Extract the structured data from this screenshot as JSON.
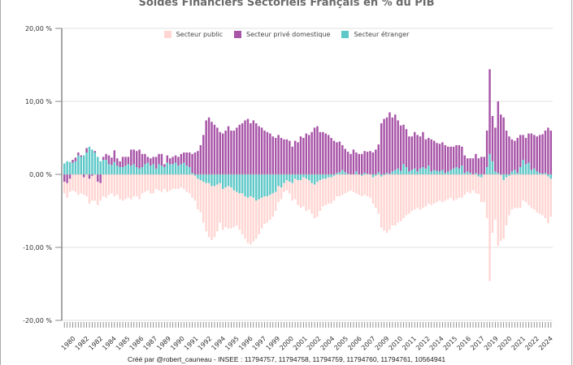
{
  "chart_data": {
    "type": "bar",
    "stacked": true,
    "title": "Soldes Financiers Sectoriels Français en % du PIB",
    "xlabel": "",
    "ylabel": "",
    "ylim": [
      -20,
      20
    ],
    "y_ticks": [
      20,
      10,
      0,
      -10,
      -20
    ],
    "y_tick_labels": [
      "20,00 %",
      "10,00 %",
      "0,00 %",
      "-10,00 %",
      "-20,00 %"
    ],
    "x_tick_labels": [
      "1980",
      "1982",
      "1982",
      "1984",
      "1985",
      "1986",
      "1987",
      "1989",
      "1990",
      "1991",
      "1992",
      "1994",
      "1995",
      "1996",
      "1997",
      "1999",
      "2000",
      "2001",
      "2002",
      "2004",
      "2005",
      "2006",
      "2007",
      "2009",
      "2010",
      "2011",
      "2012",
      "2014",
      "2015",
      "2016",
      "2017",
      "2019",
      "2020",
      "2021",
      "2022",
      "2024"
    ],
    "frequency": "quarterly",
    "start": "1980Q1",
    "end": "2024Q4",
    "grid": true,
    "legend_position": "top",
    "series": [
      {
        "name": "Secteur étranger",
        "color": "#5ec8c8",
        "values": [
          1.5,
          1.8,
          1.7,
          1.6,
          1.8,
          2.6,
          2.4,
          2.6,
          3.0,
          3.8,
          3.4,
          3.0,
          2.4,
          1.8,
          2.0,
          2.0,
          1.4,
          1.3,
          1.7,
          1.2,
          1.0,
          1.0,
          1.2,
          1.4,
          1.2,
          1.4,
          1.0,
          0.8,
          1.0,
          1.4,
          1.6,
          1.2,
          1.4,
          0.8,
          1.4,
          1.2,
          1.0,
          1.6,
          1.4,
          1.4,
          1.6,
          1.2,
          1.4,
          1.6,
          1.2,
          1.0,
          0.2,
          -0.2,
          -0.6,
          -0.8,
          -1.0,
          -1.2,
          -1.2,
          -1.6,
          -1.6,
          -1.4,
          -1.2,
          -2.0,
          -1.8,
          -1.6,
          -1.8,
          -2.2,
          -2.4,
          -2.6,
          -2.6,
          -3.0,
          -3.2,
          -3.0,
          -3.2,
          -3.6,
          -3.4,
          -3.2,
          -3.0,
          -3.0,
          -2.8,
          -2.6,
          -2.4,
          -1.6,
          -1.8,
          -1.2,
          -0.8,
          -1.0,
          -1.2,
          -0.6,
          -0.8,
          -0.8,
          -0.4,
          -0.6,
          -0.8,
          -1.2,
          -1.4,
          -1.0,
          -0.8,
          -0.6,
          -0.6,
          -0.4,
          -0.4,
          -0.2,
          0.2,
          0.3,
          0.6,
          0.3,
          0.1,
          0.0,
          0.0,
          0.4,
          0.0,
          -0.2,
          0.2,
          0.1,
          0.0,
          -0.4,
          -0.2,
          0.3,
          -0.3,
          -0.1,
          0.2,
          0.1,
          0.4,
          0.6,
          0.8,
          0.5,
          1.4,
          1.0,
          0.4,
          0.6,
          0.8,
          0.4,
          0.8,
          1.0,
          0.8,
          1.2,
          0.4,
          0.6,
          0.5,
          0.4,
          0.6,
          0.2,
          0.4,
          0.6,
          0.8,
          1.0,
          0.8,
          1.2,
          0.2,
          0.4,
          0.2,
          0.0,
          0.2,
          -0.3,
          -0.4,
          0.0,
          1.0,
          2.8,
          1.8,
          0.4,
          0.2,
          -0.1,
          -0.8,
          -0.4,
          -0.2,
          0.4,
          0.6,
          0.2,
          1.0,
          2.0,
          1.4,
          1.6,
          0.6,
          0.8,
          0.4,
          0.2,
          0.1,
          0.2,
          -0.3,
          -0.6
        ]
      },
      {
        "name": "Secteur privé domestique",
        "color": "#a855a8",
        "values": [
          -1.0,
          -1.2,
          -0.6,
          0.4,
          0.5,
          0.4,
          0.2,
          -0.4,
          0.6,
          -0.6,
          -0.2,
          0.2,
          -1.0,
          -1.2,
          0.4,
          0.8,
          1.2,
          1.0,
          1.6,
          1.0,
          0.8,
          1.4,
          1.2,
          1.0,
          2.2,
          2.0,
          2.2,
          2.6,
          1.8,
          1.4,
          0.8,
          1.0,
          1.0,
          1.6,
          1.4,
          1.6,
          0.4,
          1.0,
          0.8,
          1.0,
          1.0,
          1.2,
          1.4,
          1.4,
          1.8,
          2.0,
          2.6,
          3.0,
          3.2,
          4.0,
          5.4,
          7.4,
          7.8,
          7.2,
          6.8,
          6.4,
          5.8,
          5.6,
          6.0,
          6.6,
          6.0,
          6.0,
          6.4,
          6.8,
          7.0,
          7.4,
          7.6,
          7.0,
          7.4,
          7.0,
          6.6,
          6.4,
          6.0,
          5.8,
          5.6,
          5.2,
          5.0,
          5.4,
          5.0,
          4.8,
          4.8,
          4.6,
          3.8,
          4.6,
          4.4,
          5.2,
          5.0,
          5.6,
          5.4,
          5.8,
          6.4,
          6.6,
          5.8,
          5.8,
          5.6,
          5.4,
          5.0,
          4.6,
          4.2,
          4.2,
          3.4,
          3.2,
          3.0,
          2.8,
          3.4,
          2.6,
          2.8,
          2.8,
          3.0,
          3.0,
          3.2,
          3.0,
          3.4,
          3.8,
          7.0,
          7.6,
          7.6,
          8.4,
          7.4,
          7.6,
          6.6,
          6.2,
          5.4,
          5.2,
          4.8,
          4.6,
          5.0,
          5.0,
          4.4,
          4.8,
          4.0,
          3.8,
          4.4,
          4.0,
          3.8,
          3.8,
          3.8,
          3.8,
          3.4,
          3.2,
          3.0,
          3.0,
          3.2,
          2.6,
          2.4,
          1.8,
          2.0,
          2.2,
          2.6,
          2.2,
          2.4,
          2.4,
          5.0,
          11.6,
          6.2,
          6.0,
          9.8,
          8.2,
          7.8,
          6.0,
          5.2,
          4.4,
          4.0,
          4.8,
          4.4,
          3.4,
          3.6,
          4.0,
          5.0,
          4.6,
          4.8,
          5.2,
          5.4,
          5.8,
          6.4,
          6.0
        ]
      },
      {
        "name": "Secteur public",
        "color": "#ffd6d3",
        "values": [
          -1.6,
          -2.0,
          -1.8,
          -2.2,
          -2.4,
          -2.8,
          -2.6,
          -2.4,
          -3.0,
          -3.4,
          -3.4,
          -3.6,
          -3.2,
          -2.4,
          -3.0,
          -3.2,
          -2.8,
          -2.6,
          -3.0,
          -2.8,
          -3.4,
          -3.6,
          -3.4,
          -3.2,
          -3.4,
          -3.0,
          -3.0,
          -3.4,
          -2.6,
          -2.4,
          -2.2,
          -2.6,
          -2.6,
          -2.0,
          -2.2,
          -2.4,
          -2.0,
          -2.4,
          -2.2,
          -2.0,
          -2.0,
          -2.0,
          -1.8,
          -2.0,
          -2.4,
          -2.6,
          -3.2,
          -3.4,
          -4.2,
          -4.4,
          -5.6,
          -6.6,
          -7.4,
          -7.4,
          -7.0,
          -6.4,
          -5.4,
          -5.6,
          -5.4,
          -5.8,
          -5.6,
          -5.0,
          -4.6,
          -5.0,
          -5.6,
          -5.8,
          -6.2,
          -6.6,
          -6.0,
          -5.2,
          -4.8,
          -4.2,
          -3.8,
          -3.6,
          -3.4,
          -3.2,
          -2.6,
          -2.2,
          -1.6,
          -1.2,
          -1.4,
          -1.6,
          -2.4,
          -2.8,
          -3.4,
          -3.8,
          -4.0,
          -4.4,
          -4.0,
          -4.2,
          -4.6,
          -4.8,
          -4.2,
          -3.8,
          -3.6,
          -3.6,
          -3.6,
          -3.4,
          -3.0,
          -3.0,
          -2.8,
          -2.6,
          -2.4,
          -2.2,
          -2.4,
          -2.6,
          -2.8,
          -2.8,
          -2.8,
          -3.0,
          -3.2,
          -3.6,
          -4.4,
          -5.4,
          -7.0,
          -7.6,
          -8.0,
          -7.6,
          -7.0,
          -7.0,
          -6.6,
          -6.4,
          -6.0,
          -5.6,
          -5.4,
          -5.0,
          -4.8,
          -4.6,
          -4.8,
          -4.6,
          -4.4,
          -4.0,
          -4.2,
          -4.0,
          -3.8,
          -3.6,
          -3.8,
          -3.6,
          -3.4,
          -3.2,
          -3.6,
          -3.4,
          -3.2,
          -3.2,
          -2.8,
          -2.4,
          -2.6,
          -2.2,
          -2.6,
          -2.4,
          -3.4,
          -3.8,
          -6.0,
          -14.6,
          -8.0,
          -6.2,
          -9.8,
          -9.0,
          -8.0,
          -6.6,
          -5.4,
          -4.8,
          -4.6,
          -4.6,
          -4.6,
          -3.6,
          -3.8,
          -4.2,
          -4.6,
          -4.8,
          -5.2,
          -5.4,
          -5.6,
          -6.0,
          -6.4,
          -5.2
        ]
      }
    ]
  },
  "legend": [
    {
      "label": "Secteur public",
      "color": "#ffd6d3"
    },
    {
      "label": "Secteur privé domestique",
      "color": "#a855a8"
    },
    {
      "label": "Secteur étranger",
      "color": "#5ec8c8"
    }
  ],
  "credit": "Créé par @robert_cauneau - INSEE : 11794757, 11794758, 11794759, 11794760, 11794761, 10564941"
}
